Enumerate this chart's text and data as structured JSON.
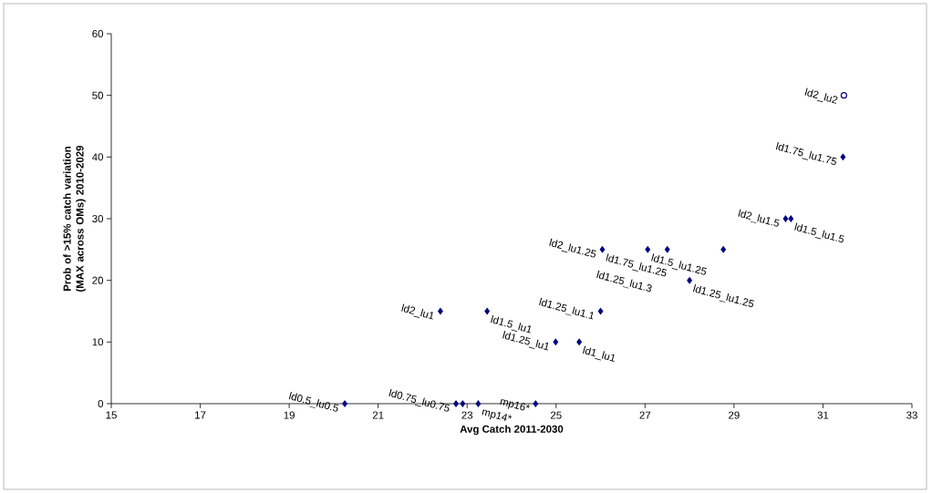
{
  "chart_data": {
    "type": "scatter",
    "xlabel": "Avg Catch 2011-2030",
    "ylabel": "Prob of >15% catch variation\n(MAX across OMs) 2010-2029",
    "series": [
      {
        "color": "#000080",
        "marker": "diamond",
        "x": [
          20.25,
          22.75,
          22.9,
          23.25,
          24.54,
          22.4,
          23.45,
          24.99,
          25.52,
          26.0,
          26.04,
          27.06,
          27.5,
          28.0,
          28.76,
          30.16,
          30.28,
          31.45
        ],
        "values": [
          0,
          0,
          0,
          0,
          0,
          15,
          15,
          10,
          10,
          15,
          25,
          25,
          25,
          20,
          25,
          30,
          30,
          40
        ]
      },
      {
        "color": "#000080",
        "marker": "circle",
        "x": [
          31.47
        ],
        "values": [
          50
        ]
      }
    ],
    "annotations": [
      {
        "text": "ld0.5_lu0.5",
        "x": 20.25,
        "y": 0
      },
      {
        "text": "ld0.75_lu0.75",
        "x": 22.75,
        "y": 0
      },
      {
        "text": "mp14*",
        "x": 23.25,
        "y": 0
      },
      {
        "text": "mp16*",
        "x": 24.54,
        "y": 0
      },
      {
        "text": "ld2_lu1",
        "x": 22.4,
        "y": 15
      },
      {
        "text": "ld1.5_lu1",
        "x": 23.45,
        "y": 15
      },
      {
        "text": "ld1.25_lu1",
        "x": 24.99,
        "y": 10
      },
      {
        "text": "ld1_lu1",
        "x": 25.52,
        "y": 10
      },
      {
        "text": "ld1.25_lu1.1",
        "x": 26.0,
        "y": 15
      },
      {
        "text": "ld2_lu1.25",
        "x": 26.04,
        "y": 25
      },
      {
        "text": "ld1.75_lu1.25",
        "x": 26.04,
        "y": 25
      },
      {
        "text": "ld1.5_lu1.25",
        "x": 27.06,
        "y": 25
      },
      {
        "text": "ld1.25_lu1.3",
        "x": 27.5,
        "y": 25
      },
      {
        "text": "ld1.25_lu1.25",
        "x": 28.0,
        "y": 20
      },
      {
        "text": "ld2_lu1.5",
        "x": 30.16,
        "y": 30
      },
      {
        "text": "ld1.5_lu1.5",
        "x": 30.28,
        "y": 30
      },
      {
        "text": "ld1.75_lu1.75",
        "x": 31.45,
        "y": 40
      },
      {
        "text": "ld2_lu2",
        "x": 31.47,
        "y": 50
      }
    ],
    "xlim": [
      15,
      33
    ],
    "xticks": [
      15,
      17,
      19,
      21,
      23,
      25,
      27,
      29,
      31,
      33
    ],
    "ylim": [
      0,
      60
    ],
    "yticks": [
      0,
      10,
      20,
      30,
      40,
      50,
      60
    ],
    "grid": false
  }
}
